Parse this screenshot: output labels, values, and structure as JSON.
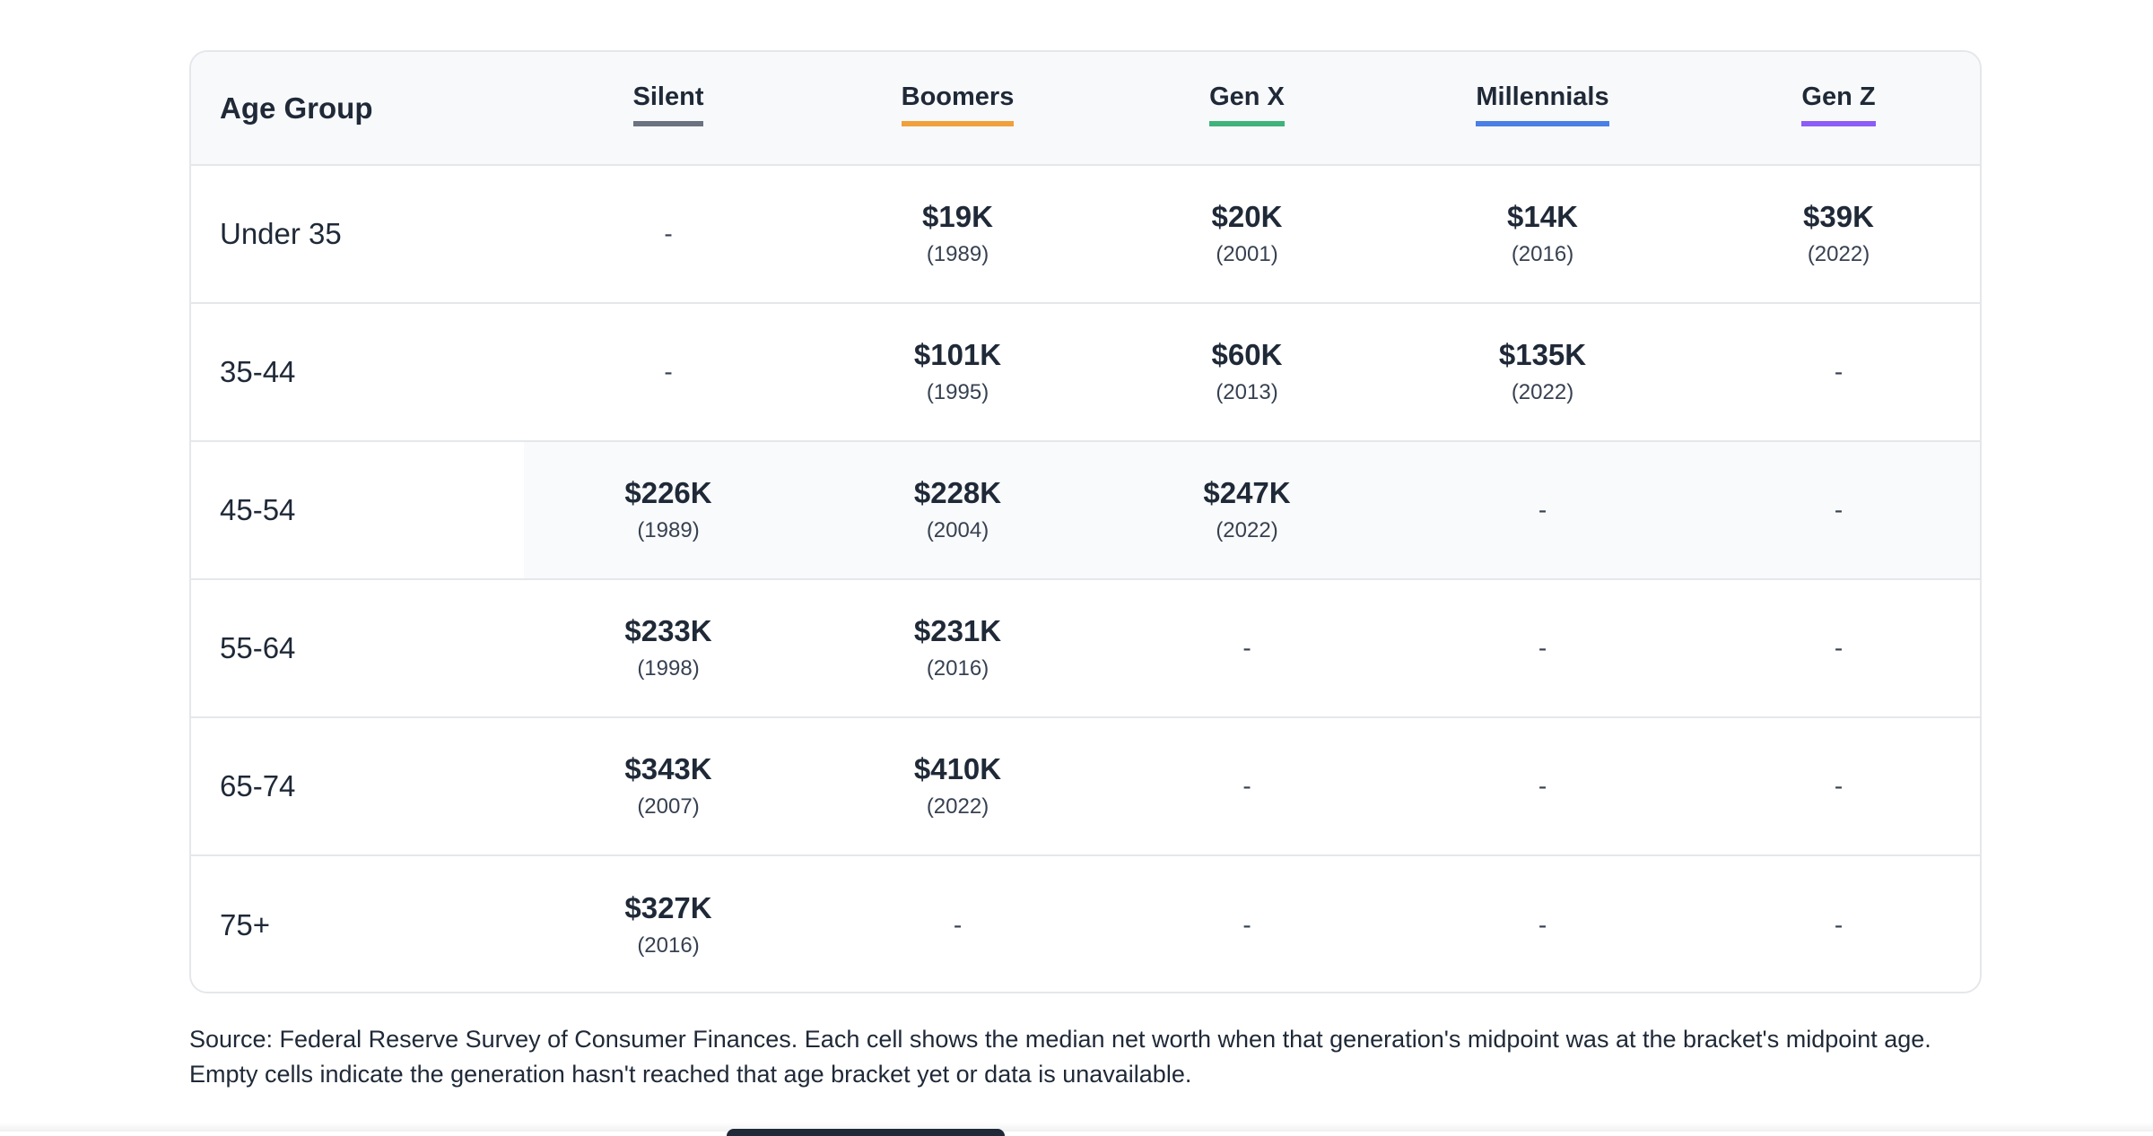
{
  "table": {
    "age_header": "Age Group",
    "generations": [
      {
        "label": "Silent",
        "color": "#6b7280"
      },
      {
        "label": "Boomers",
        "color": "#f0a03c"
      },
      {
        "label": "Gen X",
        "color": "#3fb37a"
      },
      {
        "label": "Millennials",
        "color": "#4a7fe6"
      },
      {
        "label": "Gen Z",
        "color": "#8b5cf6"
      }
    ],
    "rows": [
      {
        "age": "Under 35",
        "highlight": false,
        "cells": [
          {
            "amount": "-",
            "year": ""
          },
          {
            "amount": "$19K",
            "year": "(1989)"
          },
          {
            "amount": "$20K",
            "year": "(2001)"
          },
          {
            "amount": "$14K",
            "year": "(2016)"
          },
          {
            "amount": "$39K",
            "year": "(2022)"
          }
        ]
      },
      {
        "age": "35-44",
        "highlight": false,
        "cells": [
          {
            "amount": "-",
            "year": ""
          },
          {
            "amount": "$101K",
            "year": "(1995)"
          },
          {
            "amount": "$60K",
            "year": "(2013)"
          },
          {
            "amount": "$135K",
            "year": "(2022)"
          },
          {
            "amount": "-",
            "year": ""
          }
        ]
      },
      {
        "age": "45-54",
        "highlight": true,
        "cells": [
          {
            "amount": "$226K",
            "year": "(1989)"
          },
          {
            "amount": "$228K",
            "year": "(2004)"
          },
          {
            "amount": "$247K",
            "year": "(2022)"
          },
          {
            "amount": "-",
            "year": ""
          },
          {
            "amount": "-",
            "year": ""
          }
        ]
      },
      {
        "age": "55-64",
        "highlight": false,
        "cells": [
          {
            "amount": "$233K",
            "year": "(1998)"
          },
          {
            "amount": "$231K",
            "year": "(2016)"
          },
          {
            "amount": "-",
            "year": ""
          },
          {
            "amount": "-",
            "year": ""
          },
          {
            "amount": "-",
            "year": ""
          }
        ]
      },
      {
        "age": "65-74",
        "highlight": false,
        "cells": [
          {
            "amount": "$343K",
            "year": "(2007)"
          },
          {
            "amount": "$410K",
            "year": "(2022)"
          },
          {
            "amount": "-",
            "year": ""
          },
          {
            "amount": "-",
            "year": ""
          },
          {
            "amount": "-",
            "year": ""
          }
        ]
      },
      {
        "age": "75+",
        "highlight": false,
        "cells": [
          {
            "amount": "$327K",
            "year": "(2016)"
          },
          {
            "amount": "-",
            "year": ""
          },
          {
            "amount": "-",
            "year": ""
          },
          {
            "amount": "-",
            "year": ""
          },
          {
            "amount": "-",
            "year": ""
          }
        ]
      }
    ]
  },
  "source_note": {
    "line1": "Source: Federal Reserve Survey of Consumer Finances. Each cell shows the median net worth when that generation's midpoint was at the bracket's midpoint age.",
    "line2": "Empty cells indicate the generation hasn't reached that age bracket yet or data is unavailable."
  }
}
